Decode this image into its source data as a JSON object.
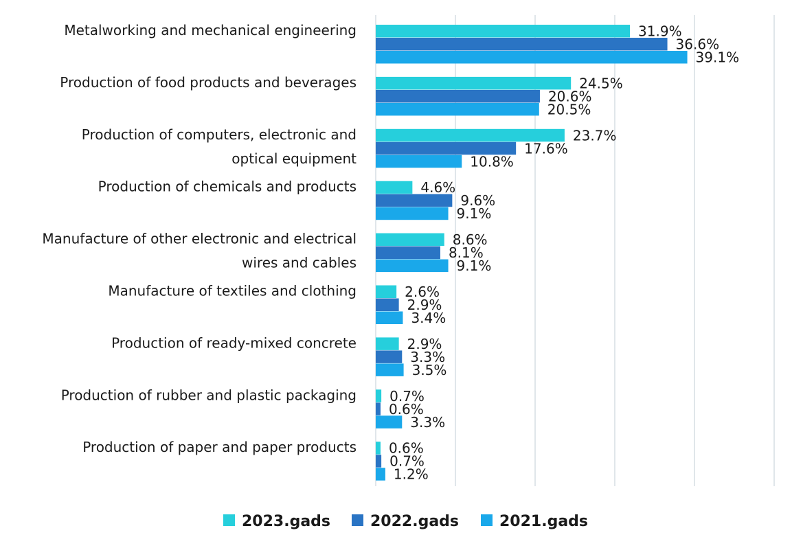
{
  "chart_data": {
    "type": "bar",
    "orientation": "horizontal",
    "title": "",
    "xlabel": "",
    "ylabel": "",
    "xlim": [
      0,
      50
    ],
    "grid": true,
    "legend_position": "bottom",
    "value_suffix": "%",
    "categories": [
      [
        "Metalworking and mechanical engineering"
      ],
      [
        "Production of food products and beverages"
      ],
      [
        "Production of computers, electronic and",
        "optical equipment"
      ],
      [
        "Production of chemicals and products"
      ],
      [
        "Manufacture of other electronic and electrical",
        "wires and cables"
      ],
      [
        "Manufacture of textiles and clothing"
      ],
      [
        "Production of ready-mixed concrete"
      ],
      [
        "Production of rubber and plastic packaging"
      ],
      [
        "Production of paper and paper products"
      ]
    ],
    "series": [
      {
        "name": "2023.gads",
        "color": "#26cfdc",
        "values": [
          31.9,
          24.5,
          23.7,
          4.6,
          8.6,
          2.6,
          2.9,
          0.7,
          0.6
        ],
        "labels": [
          "31.9%",
          "24.5%",
          "23.7%",
          "4.6%",
          "8.6%",
          "2.6%",
          "2.9%",
          "0.7%",
          "0.6%"
        ]
      },
      {
        "name": "2022.gads",
        "color": "#2a74c4",
        "values": [
          36.6,
          20.6,
          17.6,
          9.6,
          8.1,
          2.9,
          3.3,
          0.6,
          0.7
        ],
        "labels": [
          "36.6%",
          "20.6%",
          "17.6%",
          "9.6%",
          "8.1%",
          "2.9%",
          "3.3%",
          "0.6%",
          "0.7%"
        ]
      },
      {
        "name": "2021.gads",
        "color": "#1aa8ea",
        "values": [
          39.1,
          20.5,
          10.8,
          9.1,
          9.1,
          3.4,
          3.5,
          3.3,
          1.2
        ],
        "labels": [
          "39.1%",
          "20.5%",
          "10.8%",
          "9.1%",
          "9.1%",
          "3.4%",
          "3.5%",
          "3.3%",
          "1.2%"
        ]
      }
    ]
  }
}
